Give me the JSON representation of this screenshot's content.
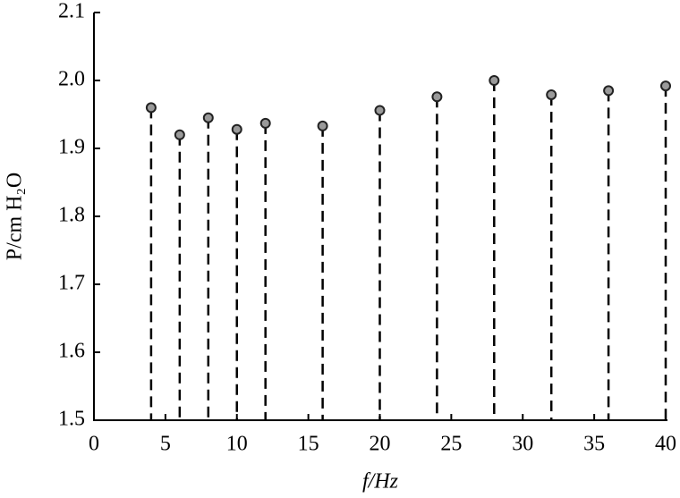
{
  "chart_data": {
    "type": "stem",
    "xlabel": "f/Hz",
    "ylabel": "P/cm H₂O",
    "x": [
      4,
      6,
      8,
      10,
      12,
      16,
      20,
      24,
      28,
      32,
      36,
      40
    ],
    "values": [
      1.96,
      1.92,
      1.945,
      1.928,
      1.937,
      1.933,
      1.956,
      1.976,
      2.0,
      1.979,
      1.985,
      1.992
    ],
    "color": "#9a9a9a",
    "xlim": [
      0,
      40
    ],
    "xticks": [
      0,
      5,
      10,
      15,
      20,
      25,
      30,
      35,
      40
    ],
    "ylim": [
      1.5,
      2.1
    ],
    "yticks": [
      1.5,
      1.6,
      1.7,
      1.8,
      1.9,
      {
        "value": 2,
        "label": "2.0"
      },
      2.1
    ]
  }
}
